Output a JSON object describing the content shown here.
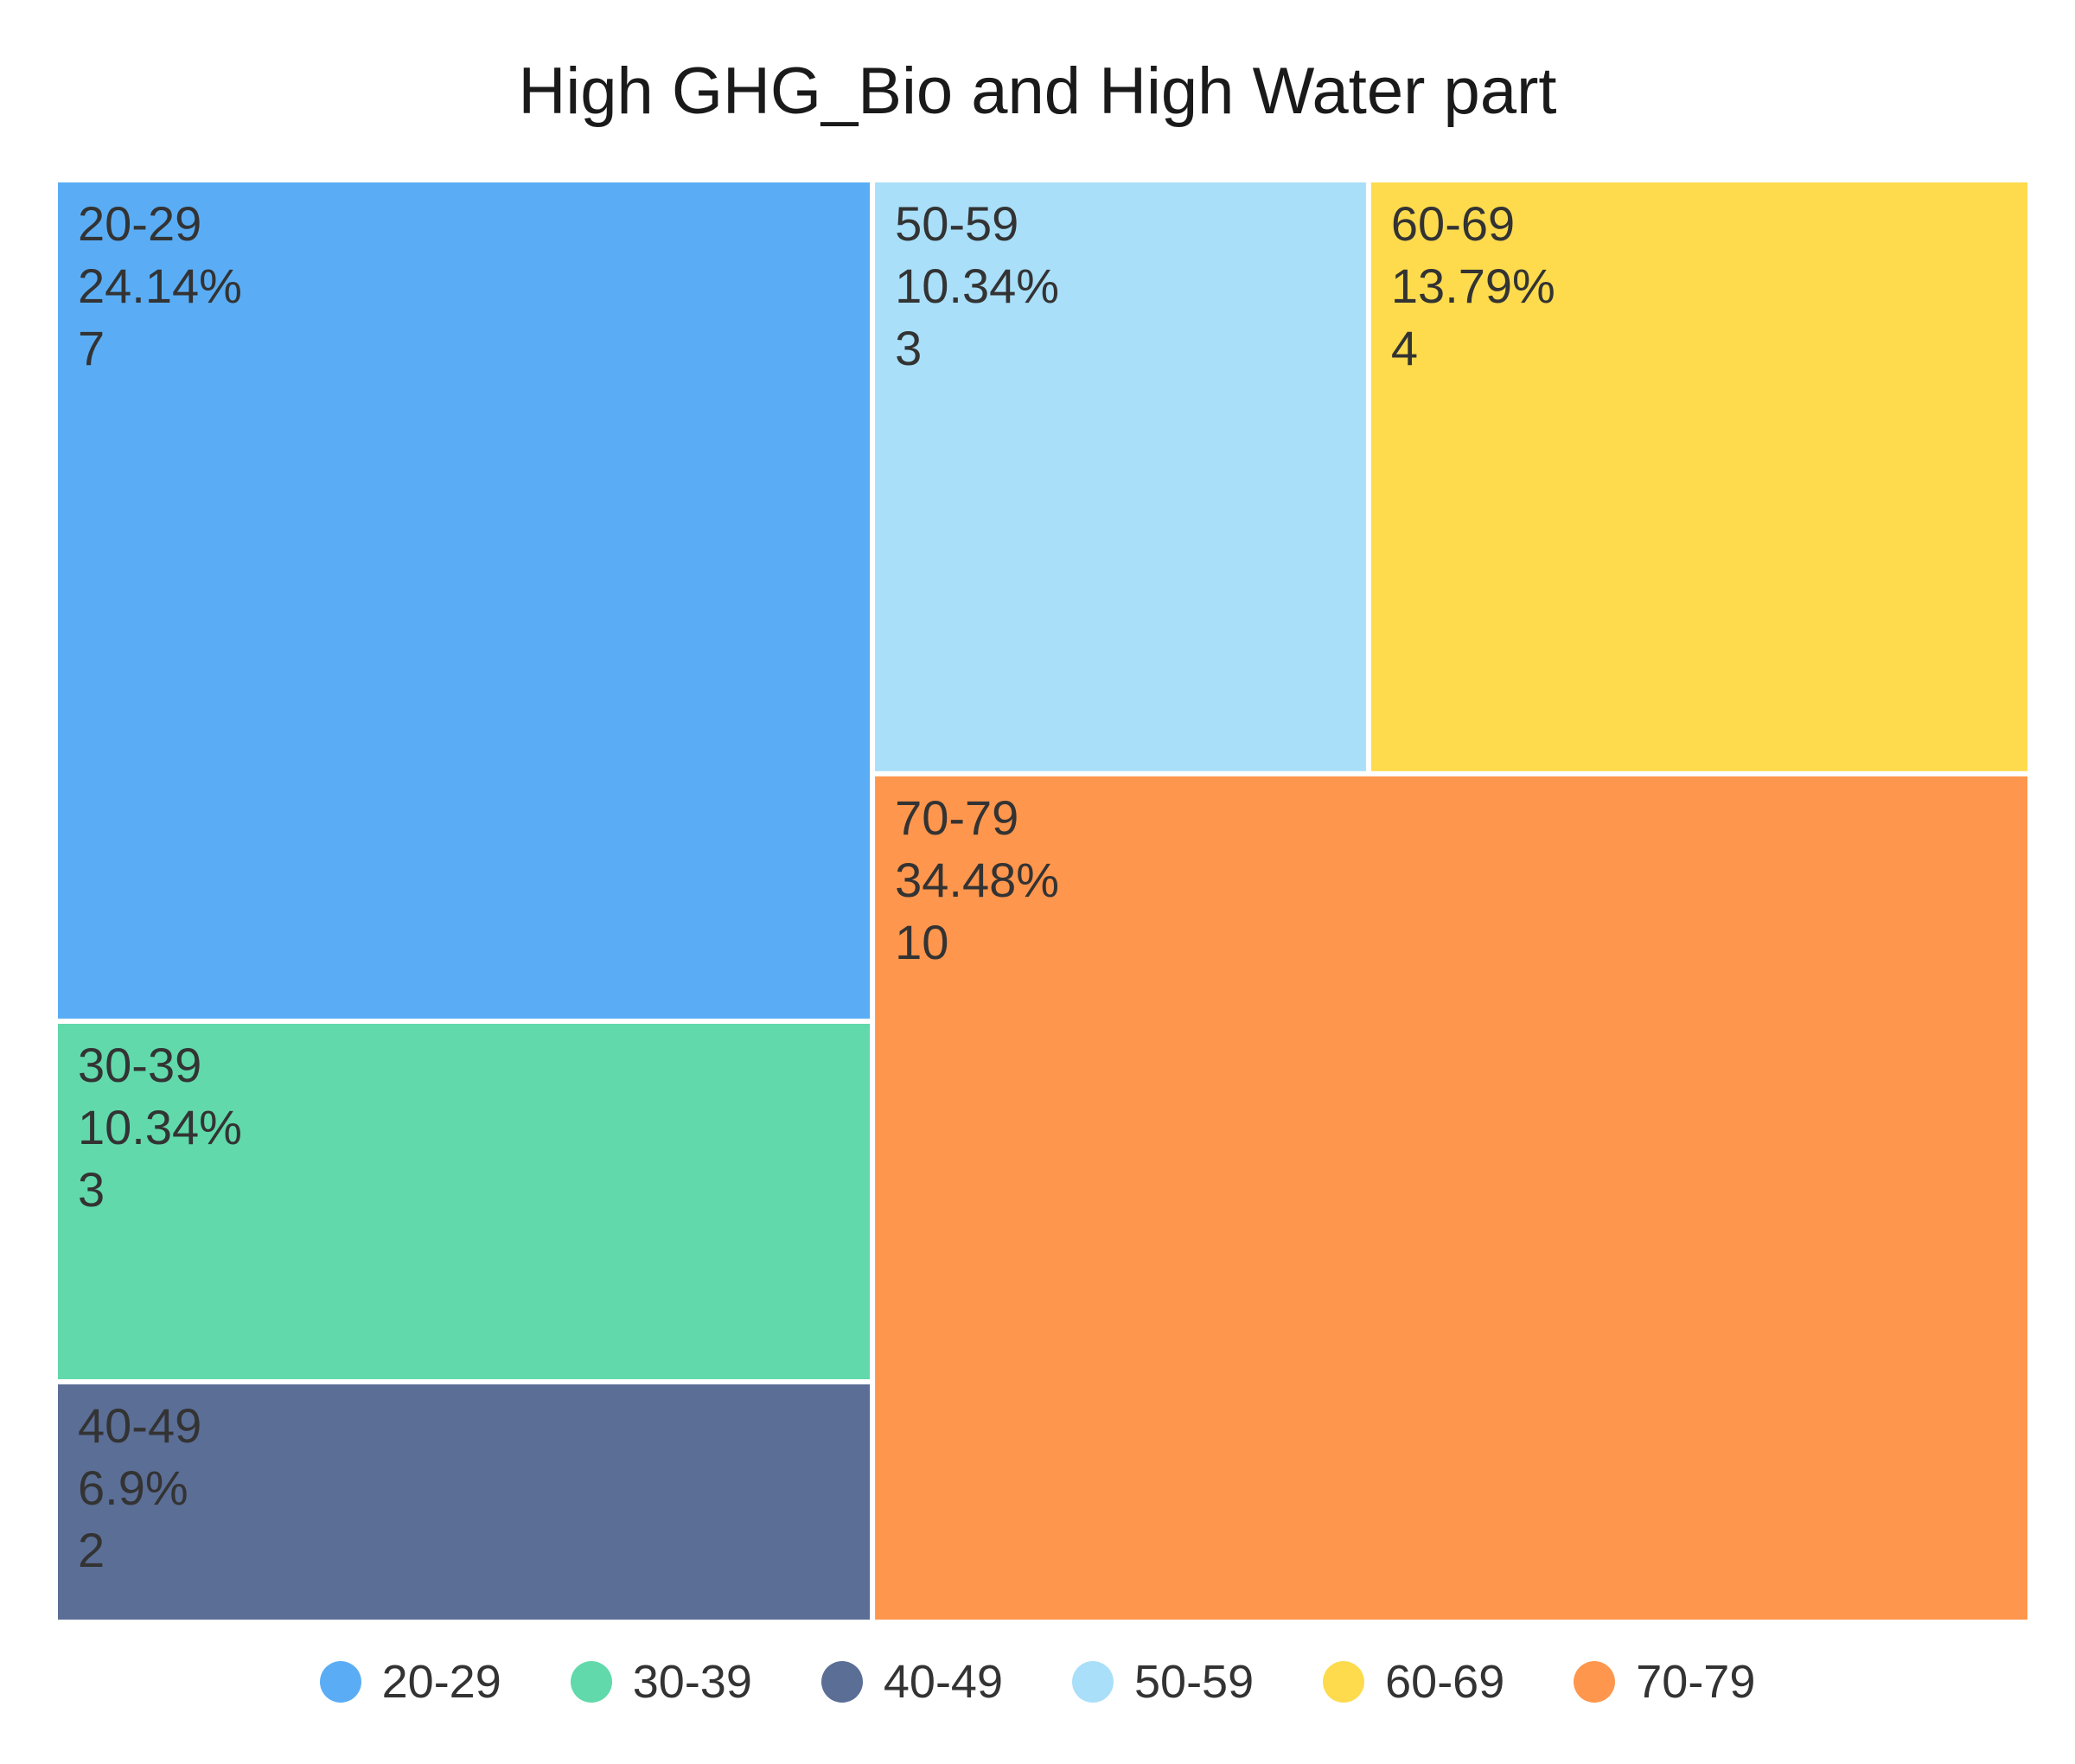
{
  "chart_data": {
    "type": "treemap",
    "title": "High GHG_Bio and High Water part",
    "legend_position": "bottom",
    "items": [
      {
        "name": "20-29",
        "value": 7,
        "percent": "24.14%",
        "color": "#5aadf5"
      },
      {
        "name": "30-39",
        "value": 3,
        "percent": "10.34%",
        "color": "#61d9ab"
      },
      {
        "name": "40-49",
        "value": 2,
        "percent": "6.9%",
        "color": "#5b6e96"
      },
      {
        "name": "50-59",
        "value": 3,
        "percent": "10.34%",
        "color": "#a9dff9"
      },
      {
        "name": "60-69",
        "value": 4,
        "percent": "13.79%",
        "color": "#fddb4d"
      },
      {
        "name": "70-79",
        "value": 10,
        "percent": "34.48%",
        "color": "#fe964d"
      }
    ]
  }
}
